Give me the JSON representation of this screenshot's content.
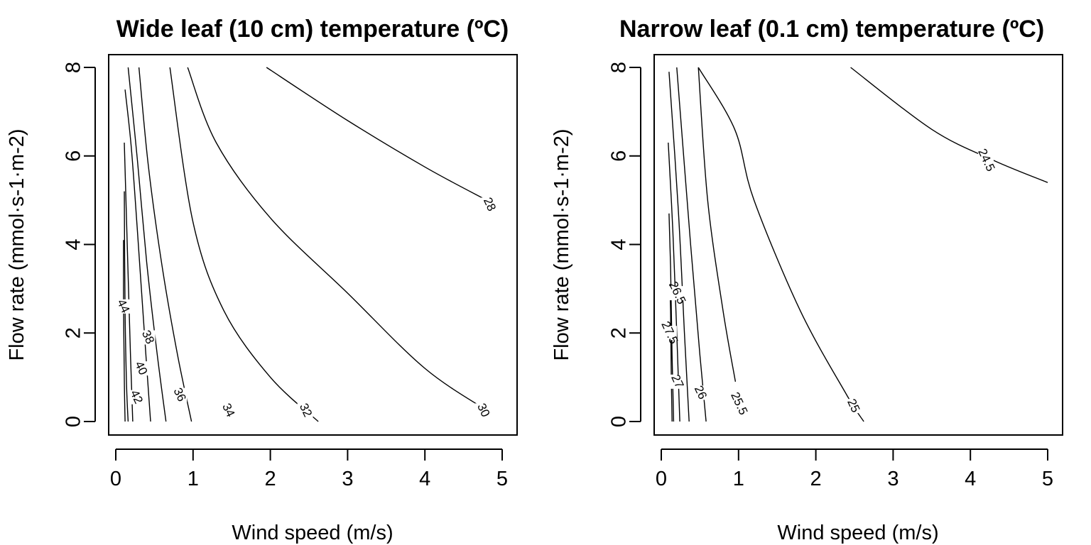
{
  "chart_data": [
    {
      "type": "contour",
      "title": "Wide leaf (10 cm) temperature (ºC)",
      "xlabel": "Wind speed (m/s)",
      "ylabel": "Flow rate (mmol·s-1·m-2)",
      "xlim": [
        0,
        5
      ],
      "ylim": [
        0,
        8
      ],
      "xticks": [
        0,
        1,
        2,
        3,
        4,
        5
      ],
      "yticks": [
        0,
        2,
        4,
        6,
        8
      ],
      "contours": [
        {
          "level": "44",
          "points": [
            [
              0.12,
              0.0
            ],
            [
              0.11,
              1.0
            ],
            [
              0.1,
              2.8
            ],
            [
              0.1,
              4.1
            ]
          ]
        },
        {
          "level": "42",
          "points": [
            [
              0.16,
              0.0
            ],
            [
              0.14,
              0.8
            ],
            [
              0.12,
              2.5
            ],
            [
              0.11,
              5.2
            ]
          ]
        },
        {
          "level": "40",
          "points": [
            [
              0.22,
              0.0
            ],
            [
              0.19,
              1.5
            ],
            [
              0.15,
              3.9
            ],
            [
              0.11,
              6.3
            ]
          ]
        },
        {
          "level": "38",
          "points": [
            [
              0.45,
              0.0
            ],
            [
              0.37,
              2.0
            ],
            [
              0.28,
              4.3
            ],
            [
              0.2,
              6.2
            ],
            [
              0.12,
              7.5
            ]
          ]
        },
        {
          "level": "36",
          "points": [
            [
              0.65,
              0.0
            ],
            [
              0.53,
              1.6
            ],
            [
              0.4,
              3.6
            ],
            [
              0.28,
              5.9
            ],
            [
              0.16,
              8.0
            ]
          ]
        },
        {
          "level": "34",
          "points": [
            [
              0.98,
              0.0
            ],
            [
              0.8,
              1.5
            ],
            [
              0.6,
              3.5
            ],
            [
              0.42,
              5.8
            ],
            [
              0.3,
              8.0
            ]
          ]
        },
        {
          "level": "32",
          "points": [
            [
              2.62,
              0.0
            ],
            [
              2.0,
              1.0
            ],
            [
              1.4,
              2.5
            ],
            [
              1.0,
              4.5
            ],
            [
              0.7,
              8.0
            ]
          ]
        },
        {
          "level": "30",
          "points": [
            [
              4.85,
              0.2
            ],
            [
              4.0,
              1.2
            ],
            [
              3.0,
              2.9
            ],
            [
              2.0,
              4.6
            ],
            [
              1.3,
              6.3
            ],
            [
              0.93,
              8.0
            ]
          ]
        },
        {
          "level": "28",
          "points": [
            [
              4.8,
              5.0
            ],
            [
              4.0,
              5.75
            ],
            [
              3.0,
              6.8
            ],
            [
              1.95,
              8.0
            ]
          ]
        }
      ],
      "labels": [
        {
          "text": "44",
          "x": 0.09,
          "y": 2.6
        },
        {
          "text": "42",
          "x": 0.26,
          "y": 0.55
        },
        {
          "text": "40",
          "x": 0.32,
          "y": 1.2
        },
        {
          "text": "38",
          "x": 0.41,
          "y": 1.9
        },
        {
          "text": "36",
          "x": 0.82,
          "y": 0.6
        },
        {
          "text": "34",
          "x": 1.45,
          "y": 0.25
        },
        {
          "text": "32",
          "x": 2.45,
          "y": 0.25
        },
        {
          "text": "30",
          "x": 4.75,
          "y": 0.25
        },
        {
          "text": "28",
          "x": 4.83,
          "y": 4.9
        }
      ]
    },
    {
      "type": "contour",
      "title": "Narrow leaf (0.1 cm) temperature (ºC)",
      "xlabel": "Wind speed (m/s)",
      "ylabel": "Flow rate (mmol·s-1·m-2)",
      "xlim": [
        0,
        5
      ],
      "ylim": [
        0,
        8
      ],
      "xticks": [
        0,
        1,
        2,
        3,
        4,
        5
      ],
      "yticks": [
        0,
        2,
        4,
        6,
        8
      ],
      "contours": [
        {
          "level": "27.5",
          "points": [
            [
              0.14,
              0.0
            ],
            [
              0.13,
              1.0
            ],
            [
              0.12,
              2.5
            ],
            [
              0.11,
              3.1
            ]
          ]
        },
        {
          "level": "27",
          "points": [
            [
              0.16,
              0.0
            ],
            [
              0.14,
              1.5
            ],
            [
              0.12,
              3.5
            ],
            [
              0.1,
              4.7
            ]
          ]
        },
        {
          "level": "26.5",
          "points": [
            [
              0.24,
              0.0
            ],
            [
              0.2,
              2.0
            ],
            [
              0.15,
              4.3
            ],
            [
              0.09,
              6.3
            ]
          ]
        },
        {
          "level": "26",
          "points": [
            [
              0.36,
              0.0
            ],
            [
              0.3,
              2.0
            ],
            [
              0.22,
              4.8
            ],
            [
              0.1,
              7.9
            ]
          ]
        },
        {
          "level": "25.5",
          "points": [
            [
              0.58,
              0.0
            ],
            [
              0.5,
              1.5
            ],
            [
              0.38,
              4.0
            ],
            [
              0.2,
              8.0
            ]
          ]
        },
        {
          "level": "25",
          "points": [
            [
              0.96,
              0.9
            ],
            [
              0.8,
              2.5
            ],
            [
              0.6,
              5.0
            ],
            [
              0.48,
              8.0
            ]
          ]
        },
        {
          "level": "24.5",
          "points": [
            [
              2.62,
              0.0
            ],
            [
              2.4,
              0.6
            ],
            [
              1.8,
              2.5
            ],
            [
              1.2,
              5.0
            ],
            [
              0.95,
              6.6
            ],
            [
              0.48,
              8.0
            ]
          ]
        },
        {
          "level": "24.5b",
          "points": [
            [
              5.0,
              5.4
            ],
            [
              4.3,
              5.9
            ],
            [
              3.5,
              6.6
            ],
            [
              2.45,
              8.0
            ]
          ]
        }
      ],
      "labels": [
        {
          "text": "26.5",
          "x": 0.2,
          "y": 2.9
        },
        {
          "text": "27.5",
          "x": 0.1,
          "y": 2.0
        },
        {
          "text": "27",
          "x": 0.2,
          "y": 0.9
        },
        {
          "text": "26",
          "x": 0.5,
          "y": 0.65
        },
        {
          "text": "25.5",
          "x": 1.0,
          "y": 0.4
        },
        {
          "text": "25",
          "x": 2.48,
          "y": 0.35
        },
        {
          "text": "24.5",
          "x": 4.2,
          "y": 5.9
        }
      ]
    }
  ]
}
